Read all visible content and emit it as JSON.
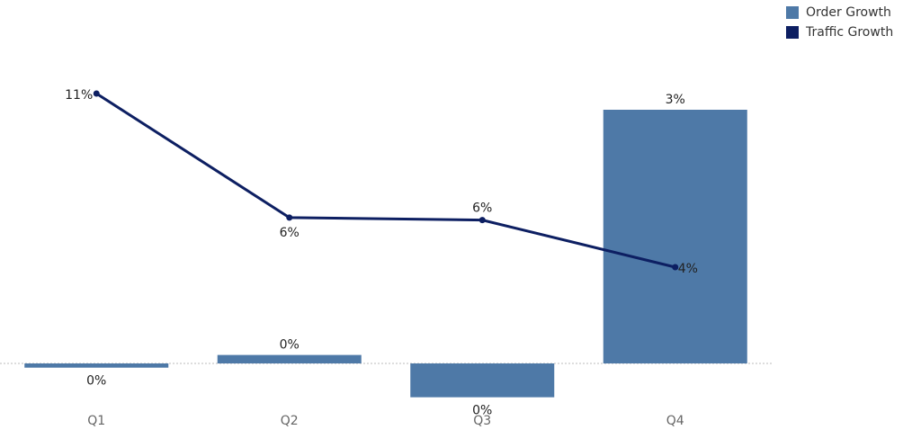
{
  "chart_data": {
    "type": "bar",
    "categories": [
      "Q1",
      "Q2",
      "Q3",
      "Q4"
    ],
    "series": [
      {
        "name": "Order Growth",
        "type": "bar",
        "values": [
          -0.05,
          0.1,
          -0.4,
          3.0
        ],
        "labels": [
          "0%",
          "0%",
          "0%",
          "3%"
        ],
        "color": "#4e79a7"
      },
      {
        "name": "Traffic Growth",
        "type": "line",
        "values": [
          11.0,
          6.0,
          5.9,
          4.0
        ],
        "labels": [
          "11%",
          "6%",
          "6%",
          "4%"
        ],
        "color": "#0d1f62"
      }
    ],
    "zero_line": true,
    "legend_position": "top-right",
    "xlabel": "",
    "ylabel": ""
  }
}
